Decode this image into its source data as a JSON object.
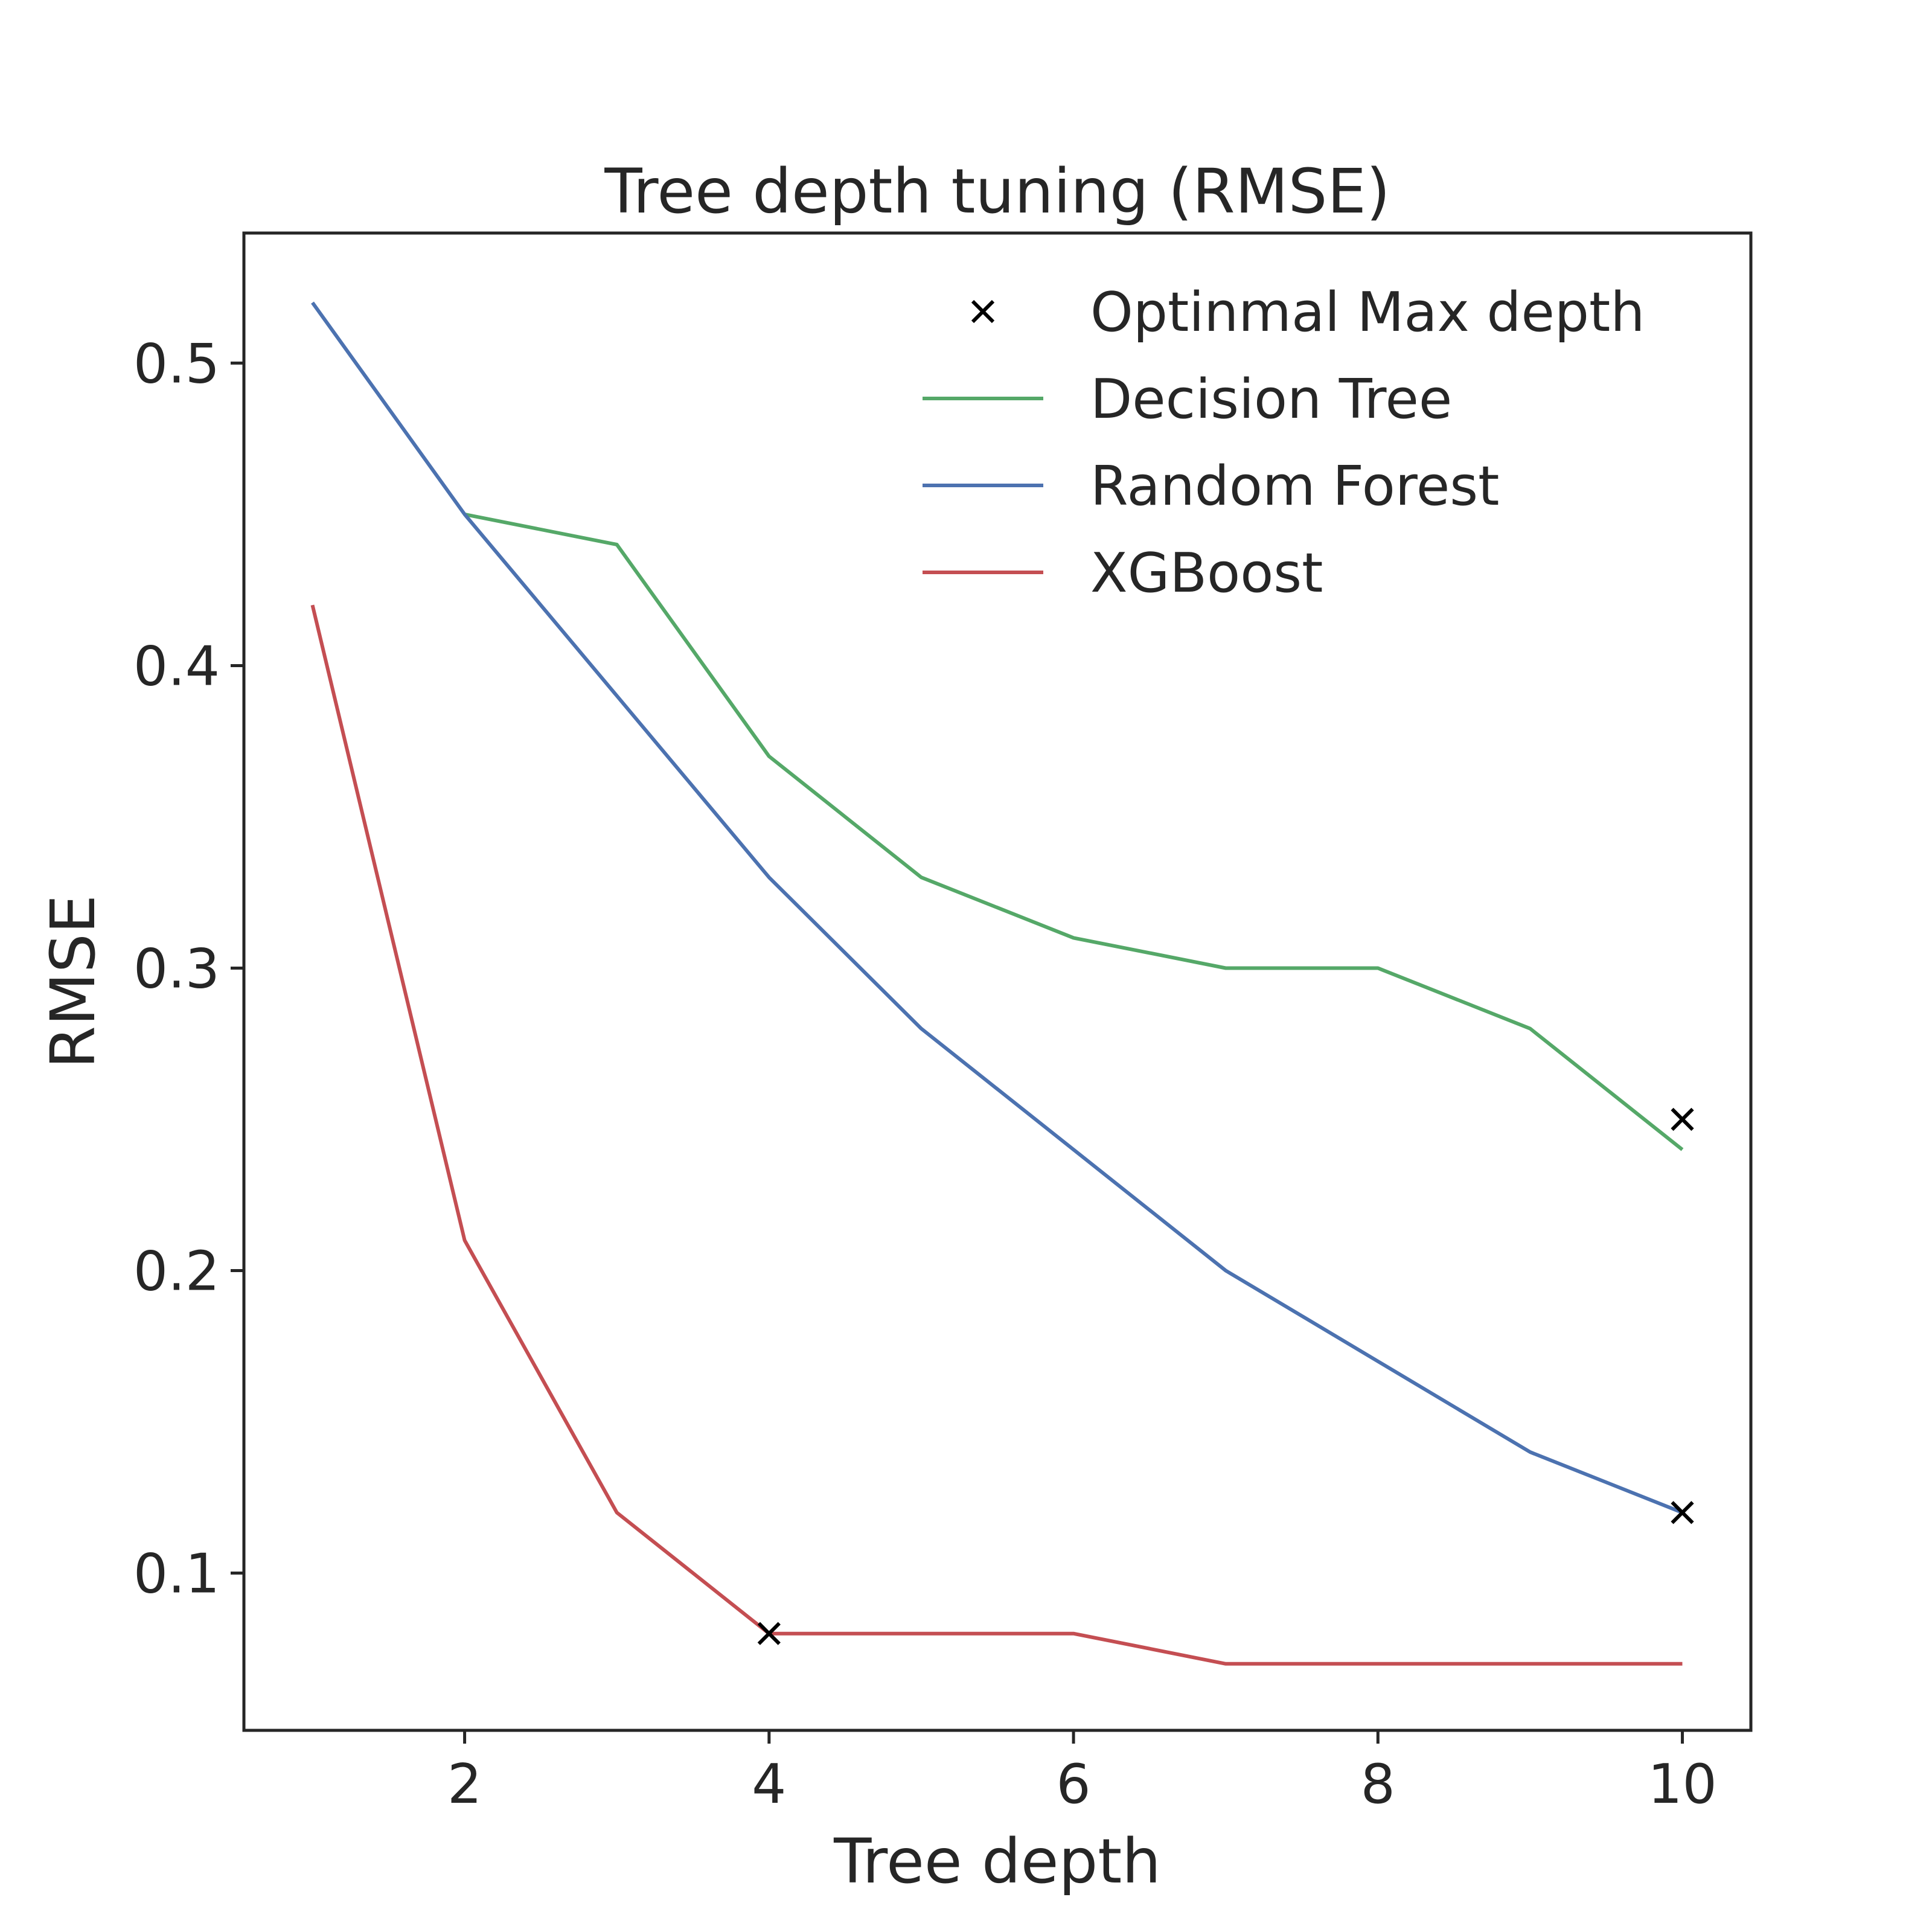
{
  "chart_data": {
    "type": "line",
    "title": "Tree depth tuning (RMSE)",
    "xlabel": "Tree depth",
    "ylabel": "RMSE",
    "xlim": [
      0.55,
      10.45
    ],
    "ylim": [
      0.048,
      0.543
    ],
    "x_ticks": [
      2,
      4,
      6,
      8,
      10
    ],
    "y_ticks": [
      0.1,
      0.2,
      0.3,
      0.4,
      0.5
    ],
    "grid": false,
    "legend_position": "top-right",
    "x": [
      1,
      2,
      3,
      4,
      5,
      6,
      7,
      8,
      9,
      10
    ],
    "series": [
      {
        "name": "Decision Tree",
        "color": "#55a868",
        "x": [
          2,
          3,
          4,
          5,
          6,
          7,
          8,
          9,
          10
        ],
        "values": [
          0.45,
          0.44,
          0.37,
          0.33,
          0.31,
          0.3,
          0.3,
          0.28,
          0.24
        ]
      },
      {
        "name": "Random Forest",
        "color": "#4c72b0",
        "x": [
          1,
          2,
          3,
          4,
          5,
          6,
          7,
          8,
          9,
          10
        ],
        "values": [
          0.52,
          0.45,
          0.39,
          0.33,
          0.28,
          0.24,
          0.2,
          0.17,
          0.14,
          0.12
        ]
      },
      {
        "name": "XGBoost",
        "color": "#c44e52",
        "x": [
          1,
          2,
          3,
          4,
          5,
          6,
          7,
          8,
          9,
          10
        ],
        "values": [
          0.42,
          0.21,
          0.12,
          0.08,
          0.08,
          0.08,
          0.07,
          0.07,
          0.07,
          0.07
        ]
      }
    ],
    "markers": {
      "name": "Optinmal Max depth",
      "symbol": "x",
      "color": "#000000",
      "points": [
        {
          "x": 10,
          "y": 0.25
        },
        {
          "x": 10,
          "y": 0.12
        },
        {
          "x": 4,
          "y": 0.08
        }
      ]
    }
  }
}
